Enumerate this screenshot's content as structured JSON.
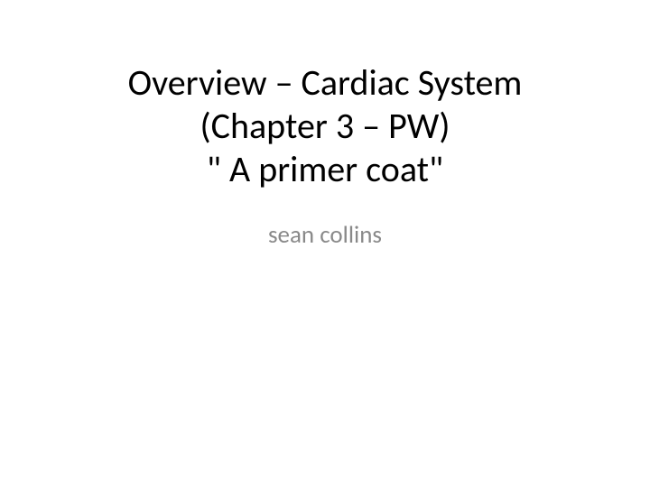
{
  "slide": {
    "title_line1": "Overview – Cardiac System",
    "title_line2": "(Chapter 3 – PW)",
    "title_line3": "\" A primer coat\"",
    "subtitle": "sean collins",
    "title_fontsize": 40,
    "subtitle_fontsize": 27,
    "title_color": "#000000",
    "subtitle_color": "#898989",
    "background_color": "#ffffff"
  }
}
